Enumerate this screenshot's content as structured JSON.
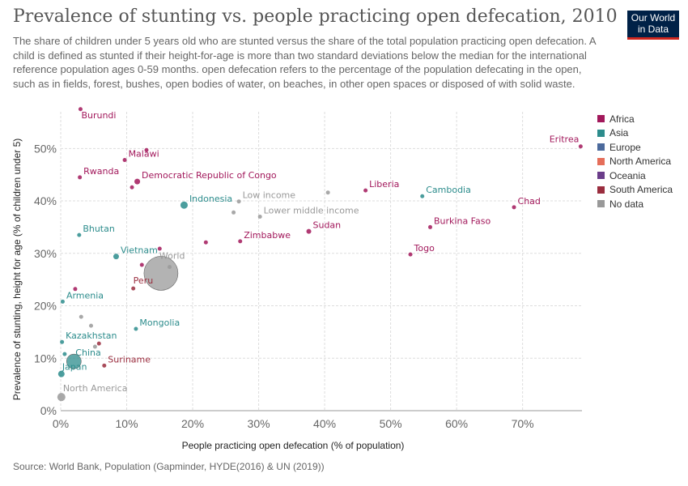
{
  "header": {
    "title": "Prevalence of stunting vs. people practicing open defecation, 2010",
    "subtitle": "The share of children under 5 years old who are stunted versus the share of the total population practicing open defecation. A child is defined as stunted if their height-for-age is more than two standard deviations below the median for the international reference population ages 0-59 months. open defecation refers to the percentage of the population defecating in the open, such as in fields, forest, bushes, open bodies of water, on beaches, in other open spaces or disposed of with solid waste.",
    "logo_line1": "Our World",
    "logo_line2": "in Data"
  },
  "footer": {
    "source": "Source: World Bank, Population (Gapminder, HYDE(2016) & UN (2019))"
  },
  "colors": {
    "Africa": "#a2185b",
    "Asia": "#2c8c8c",
    "Europe": "#4c6a9c",
    "North America": "#e56e5a",
    "Oceania": "#6b3d8a",
    "South America": "#9a2d3e",
    "No data": "#999999"
  },
  "chart_data": {
    "type": "scatter",
    "title": "Prevalence of stunting vs. people practicing open defecation, 2010",
    "xlabel": "People practicing open defecation (% of population)",
    "ylabel": "Prevalence of stunting, height for age (% of children under 5)",
    "xlim": [
      0,
      79
    ],
    "ylim": [
      0,
      57
    ],
    "xticks": [
      0,
      10,
      20,
      30,
      40,
      50,
      60,
      70
    ],
    "yticks": [
      0,
      10,
      20,
      30,
      40,
      50
    ],
    "xtick_labels": [
      "0%",
      "10%",
      "20%",
      "30%",
      "40%",
      "50%",
      "60%",
      "70%"
    ],
    "ytick_labels": [
      "0%",
      "10%",
      "20%",
      "30%",
      "40%",
      "50%"
    ],
    "grid": true,
    "legend_position": "right",
    "legend": [
      "Africa",
      "Asia",
      "Europe",
      "North America",
      "Oceania",
      "South America",
      "No data"
    ],
    "points": [
      {
        "label": "Burundi",
        "x": 3,
        "y": 57.5,
        "region": "Africa",
        "size": 2.5
      },
      {
        "label": "",
        "x": 13,
        "y": 49.7,
        "region": "Africa",
        "size": 2.5
      },
      {
        "label": "Malawi",
        "x": 9.7,
        "y": 47.8,
        "region": "Africa",
        "size": 2.5
      },
      {
        "label": "Rwanda",
        "x": 2.9,
        "y": 44.5,
        "region": "Africa",
        "size": 2.5
      },
      {
        "label": "Democratic Republic of Congo",
        "x": 11.6,
        "y": 43.7,
        "region": "Africa",
        "size": 3.5
      },
      {
        "label": "",
        "x": 10.8,
        "y": 42.6,
        "region": "Africa",
        "size": 2.5
      },
      {
        "label": "Indonesia",
        "x": 18.7,
        "y": 39.2,
        "region": "Asia",
        "size": 4.5
      },
      {
        "label": "Low income",
        "x": 27,
        "y": 39.9,
        "region": "No data",
        "size": 2.5
      },
      {
        "label": "",
        "x": 26.2,
        "y": 37.8,
        "region": "No data",
        "size": 2.5
      },
      {
        "label": "Lower middle income",
        "x": 30.2,
        "y": 37,
        "region": "No data",
        "size": 2.5
      },
      {
        "label": "",
        "x": 40.5,
        "y": 41.6,
        "region": "No data",
        "size": 2.5
      },
      {
        "label": "Liberia",
        "x": 46.2,
        "y": 42,
        "region": "Africa",
        "size": 2.5
      },
      {
        "label": "Cambodia",
        "x": 54.8,
        "y": 40.9,
        "region": "Asia",
        "size": 2.5
      },
      {
        "label": "Eritrea",
        "x": 78.8,
        "y": 50.4,
        "region": "Africa",
        "size": 2.5
      },
      {
        "label": "Chad",
        "x": 68.7,
        "y": 38.8,
        "region": "Africa",
        "size": 2.5
      },
      {
        "label": "Burkina Faso",
        "x": 56,
        "y": 35,
        "region": "Africa",
        "size": 2.5
      },
      {
        "label": "Sudan",
        "x": 37.6,
        "y": 34.2,
        "region": "Africa",
        "size": 3
      },
      {
        "label": "Zimbabwe",
        "x": 27.2,
        "y": 32.3,
        "region": "Africa",
        "size": 2.5
      },
      {
        "label": "",
        "x": 22,
        "y": 32.1,
        "region": "Africa",
        "size": 2.5
      },
      {
        "label": "Togo",
        "x": 53,
        "y": 29.8,
        "region": "Africa",
        "size": 2.5
      },
      {
        "label": "Bhutan",
        "x": 2.8,
        "y": 33.5,
        "region": "Asia",
        "size": 2.5
      },
      {
        "label": "Vietnam",
        "x": 8.4,
        "y": 29.4,
        "region": "Asia",
        "size": 3.5
      },
      {
        "label": "",
        "x": 15,
        "y": 30.9,
        "region": "Africa",
        "size": 2.5
      },
      {
        "label": "",
        "x": 12.3,
        "y": 27.8,
        "region": "Africa",
        "size": 2.5
      },
      {
        "label": "",
        "x": 16.5,
        "y": 27.4,
        "region": "No data",
        "size": 2.5
      },
      {
        "label": "World",
        "x": 15.2,
        "y": 26.2,
        "region": "No data",
        "size": 21
      },
      {
        "label": "Peru",
        "x": 11,
        "y": 23.3,
        "region": "South America",
        "size": 2.5
      },
      {
        "label": "",
        "x": 2.2,
        "y": 23.2,
        "region": "Africa",
        "size": 2.5
      },
      {
        "label": "Armenia",
        "x": 0.3,
        "y": 20.8,
        "region": "Asia",
        "size": 2.5
      },
      {
        "label": "",
        "x": 3.1,
        "y": 17.9,
        "region": "No data",
        "size": 2.5
      },
      {
        "label": "",
        "x": 4.6,
        "y": 16.2,
        "region": "No data",
        "size": 2.5
      },
      {
        "label": "Mongolia",
        "x": 11.4,
        "y": 15.6,
        "region": "Asia",
        "size": 2.5
      },
      {
        "label": "Kazakhstan",
        "x": 0.2,
        "y": 13.1,
        "region": "Asia",
        "size": 2.5
      },
      {
        "label": "",
        "x": 5.8,
        "y": 12.8,
        "region": "South America",
        "size": 2.5
      },
      {
        "label": "",
        "x": 5.2,
        "y": 12.2,
        "region": "No data",
        "size": 2.5
      },
      {
        "label": "",
        "x": 0.6,
        "y": 10.8,
        "region": "Asia",
        "size": 2.5
      },
      {
        "label": "China",
        "x": 2,
        "y": 9.4,
        "region": "Asia",
        "size": 9
      },
      {
        "label": "Suriname",
        "x": 6.6,
        "y": 8.6,
        "region": "South America",
        "size": 2.5
      },
      {
        "label": "Japan",
        "x": 0.1,
        "y": 7,
        "region": "Asia",
        "size": 4
      },
      {
        "label": "North America",
        "x": 0.1,
        "y": 2.6,
        "region": "No data",
        "size": 5
      }
    ]
  }
}
